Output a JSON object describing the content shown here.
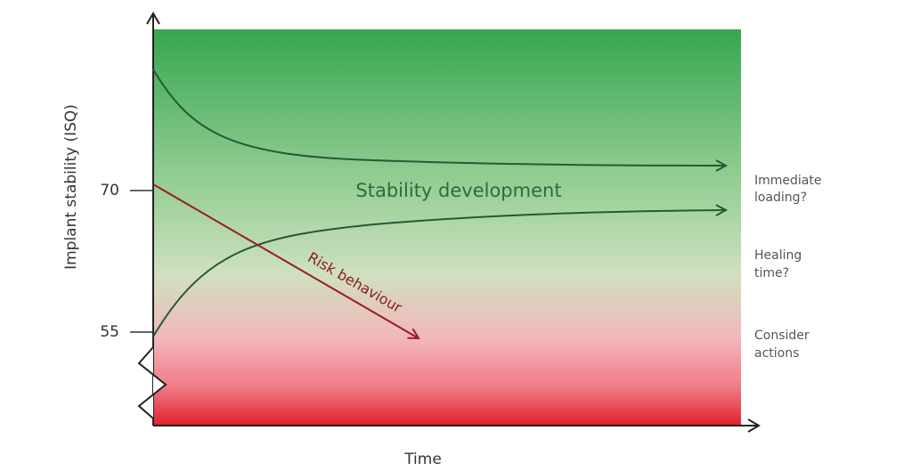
{
  "y_axis": {
    "label": "Implant stability (ISQ)",
    "ticks": [
      70,
      55
    ]
  },
  "x_axis": {
    "label": "Time"
  },
  "curves": {
    "stability": "Stability development",
    "risk": "Risk behaviour"
  },
  "zones": [
    {
      "lines": [
        "Immediate",
        "loading?"
      ]
    },
    {
      "lines": [
        "Healing",
        "time?"
      ]
    },
    {
      "lines": [
        "Consider",
        "actions"
      ]
    }
  ]
}
